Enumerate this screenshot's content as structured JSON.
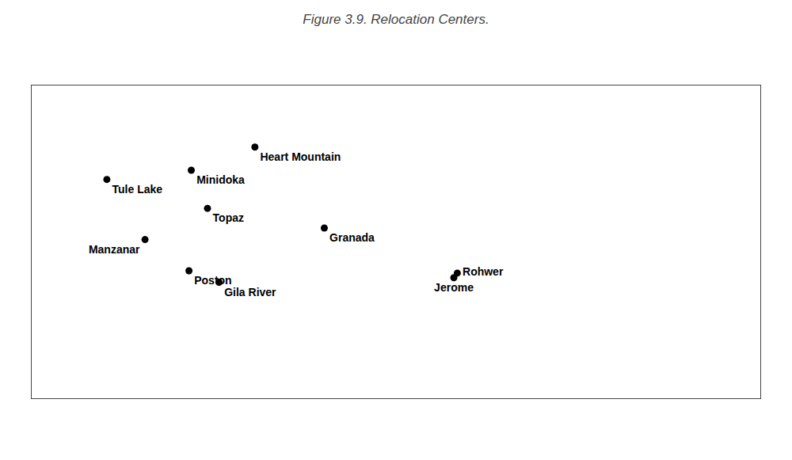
{
  "chart_data": {
    "type": "scatter",
    "title": "Figure 3.9. Relocation Centers.",
    "x": [
      -121.5,
      -118.2,
      -114.2,
      -108.7,
      -112.8,
      -114.4,
      -111.8,
      -102.7,
      -91.5,
      -91.2
    ],
    "values": [
      41.9,
      36.7,
      42.7,
      44.7,
      39.4,
      34.0,
      33.0,
      37.7,
      33.4,
      33.8
    ],
    "annotations": [
      "Tule Lake",
      "Manzanar",
      "Minidoka",
      "Heart Mountain",
      "Topaz",
      "Poston",
      "Gila River",
      "Granada",
      "Jerome",
      "Rohwer"
    ],
    "color": "#000000",
    "marker": "circle",
    "xlim": [
      -128,
      -65
    ],
    "ylim": [
      23,
      50
    ],
    "tick_labels": false,
    "grid": false
  }
}
